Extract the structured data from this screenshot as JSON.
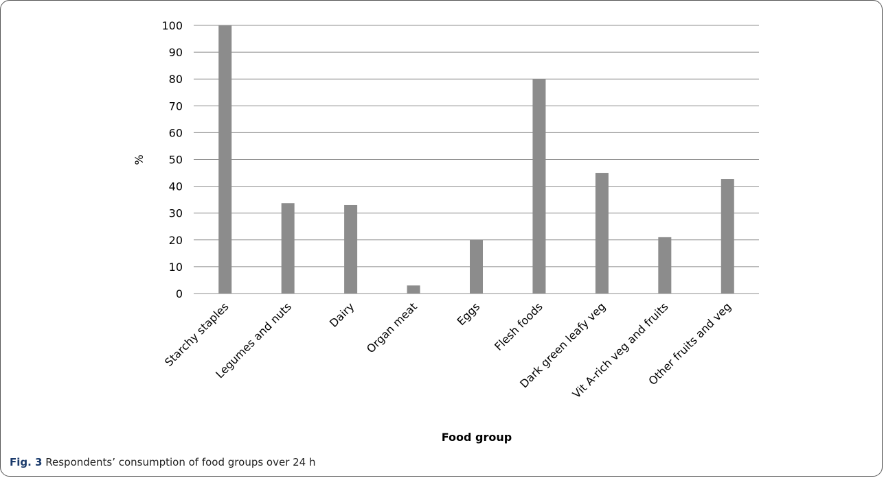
{
  "chart_data": {
    "type": "bar",
    "categories": [
      "Starchy staples",
      "Legumes and nuts",
      "Dairy",
      "Organ meat",
      "Eggs",
      "Flesh foods",
      "Dark green leafy veg",
      "Vit A-rich veg and fruits",
      "Other fruits and veg"
    ],
    "values": [
      100,
      33.7,
      33,
      3,
      20,
      80,
      45,
      21,
      42.7
    ],
    "xlabel": "Food group",
    "ylabel": "%",
    "ylim": [
      0,
      100
    ],
    "yticks": [
      0,
      10,
      20,
      30,
      40,
      50,
      60,
      70,
      80,
      90,
      100
    ],
    "grid": "horizontal",
    "bar_color": "#8c8c8c",
    "grid_color": "#8c8c8c"
  },
  "caption": {
    "label": "Fig. 3",
    "text": " Respondents’ consumption of food groups over 24 h"
  }
}
